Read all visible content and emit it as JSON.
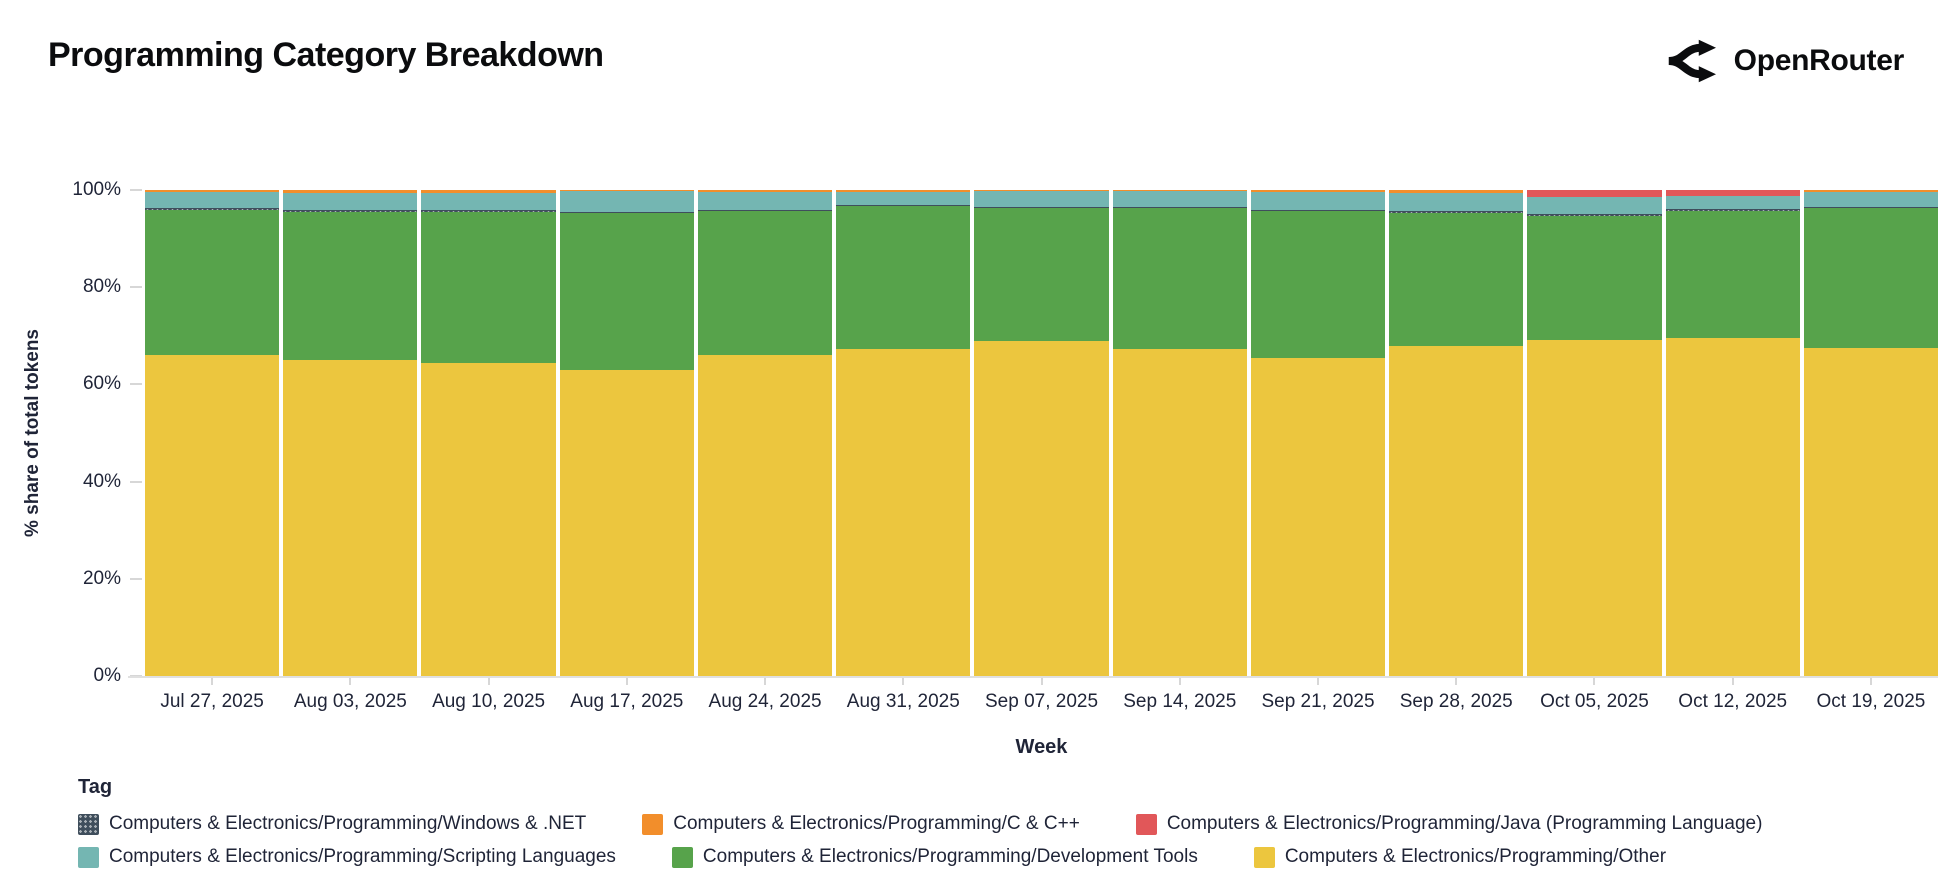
{
  "header": {
    "title": "Programming Category Breakdown",
    "brand": "OpenRouter"
  },
  "chart_data": {
    "type": "bar",
    "stacked": true,
    "normalized_percent": true,
    "title": "Programming Category Breakdown",
    "xlabel": "Week",
    "ylabel": "% share of total tokens",
    "ylim": [
      0,
      100
    ],
    "y_ticks": [
      0,
      20,
      40,
      60,
      80,
      100
    ],
    "y_tick_suffix": "%",
    "grid": false,
    "categories": [
      "Jul 27, 2025",
      "Aug 03, 2025",
      "Aug 10, 2025",
      "Aug 17, 2025",
      "Aug 24, 2025",
      "Aug 31, 2025",
      "Sep 07, 2025",
      "Sep 14, 2025",
      "Sep 21, 2025",
      "Sep 28, 2025",
      "Oct 05, 2025",
      "Oct 12, 2025",
      "Oct 19, 2025"
    ],
    "series": [
      {
        "key": "other",
        "name": "Computers & Electronics/Programming/Other",
        "color": "#ecc63e",
        "values": [
          66.0,
          65.0,
          64.5,
          63.0,
          66.0,
          67.3,
          69.0,
          67.2,
          65.5,
          68.0,
          69.2,
          69.5,
          67.5
        ]
      },
      {
        "key": "development_tools",
        "name": "Computers & Electronics/Programming/Development Tools",
        "color": "#57a34b",
        "values": [
          29.9,
          30.5,
          31.0,
          32.2,
          29.6,
          29.4,
          27.2,
          29.0,
          30.1,
          27.3,
          25.5,
          26.2,
          28.8
        ]
      },
      {
        "key": "windows_dotnet",
        "name": "Computers & Electronics/Programming/Windows & .NET",
        "color": "#3f4e5c",
        "pattern": "dots",
        "values": [
          0.3,
          0.3,
          0.3,
          0.3,
          0.3,
          0.3,
          0.3,
          0.3,
          0.3,
          0.3,
          0.3,
          0.3,
          0.3
        ]
      },
      {
        "key": "scripting_languages",
        "name": "Computers & Electronics/Programming/Scripting Languages",
        "color": "#74b6b2",
        "values": [
          3.4,
          3.5,
          3.5,
          4.2,
          3.8,
          2.7,
          3.2,
          3.2,
          3.6,
          3.7,
          3.6,
          2.8,
          2.9
        ]
      },
      {
        "key": "java",
        "name": "Computers & Electronics/Programming/Java (Programming Language)",
        "color": "#e15759",
        "values": [
          0,
          0,
          0,
          0,
          0,
          0,
          0,
          0,
          0,
          0,
          1.4,
          1.2,
          0
        ]
      },
      {
        "key": "c_cpp",
        "name": "Computers & Electronics/Programming/C & C++",
        "color": "#f28e2b",
        "values": [
          0.4,
          0.7,
          0.7,
          0.3,
          0.3,
          0.3,
          0.3,
          0.3,
          0.5,
          0.7,
          0,
          0,
          0.5
        ]
      }
    ],
    "legend": {
      "title": "Tag",
      "position": "bottom-left",
      "rows": [
        [
          "windows_dotnet",
          "c_cpp",
          "java"
        ],
        [
          "scripting_languages",
          "development_tools",
          "other"
        ]
      ]
    }
  }
}
